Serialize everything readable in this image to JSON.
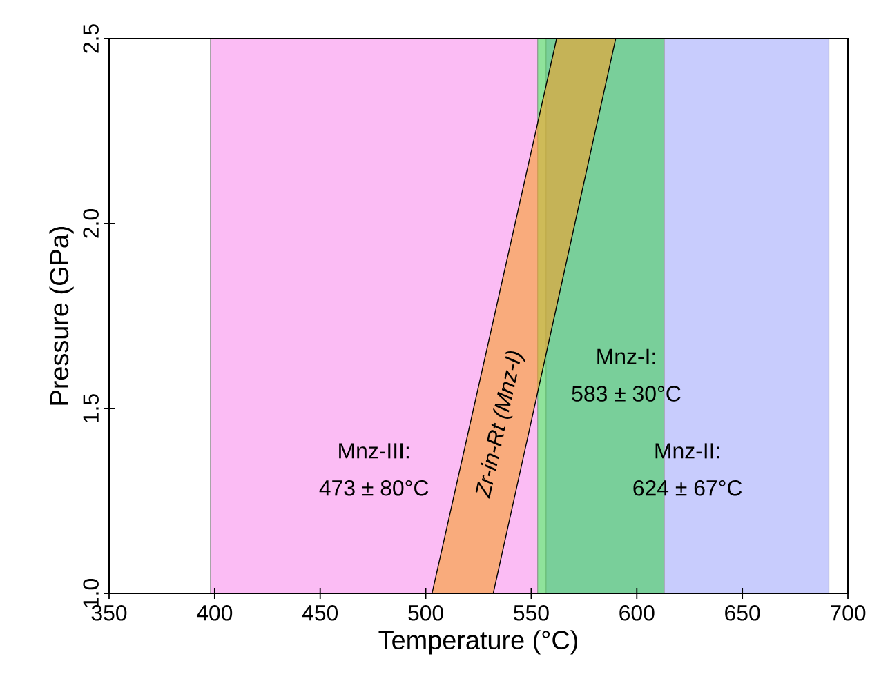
{
  "chart_data": {
    "type": "area",
    "xlabel": "Temperature (°C)",
    "ylabel": "Pressure (GPa)",
    "xlim": [
      350,
      700
    ],
    "ylim": [
      1.0,
      2.5
    ],
    "xticks": [
      350,
      400,
      450,
      500,
      550,
      600,
      650,
      700
    ],
    "yticks": [
      {
        "value": 1.0,
        "label": "1.0"
      },
      {
        "value": 1.5,
        "label": "1.5"
      },
      {
        "value": 2.0,
        "label": "2.0"
      },
      {
        "value": 2.5,
        "label": "2.5"
      }
    ],
    "bands": [
      {
        "axis": "x",
        "from": 398,
        "to": 553,
        "color": "#f88fed"
      },
      {
        "axis": "x",
        "from": 557,
        "to": 691,
        "color": "#a3aafc"
      },
      {
        "axis": "x",
        "from": 553,
        "to": 613,
        "color": "#44d058"
      }
    ],
    "series": [
      {
        "name": "Zr-in-Rt (Mnz-I)",
        "color": "#f8a02c",
        "x": [
          503,
          532,
          590,
          562
        ],
        "values": [
          1.0,
          1.0,
          2.5,
          2.5
        ]
      }
    ],
    "annotations": [
      "Mnz-III:",
      "473 ± 80°C",
      "Mnz-II:",
      "624 ± 67°C",
      "Mnz-I:",
      "583 ± 30°C"
    ]
  }
}
